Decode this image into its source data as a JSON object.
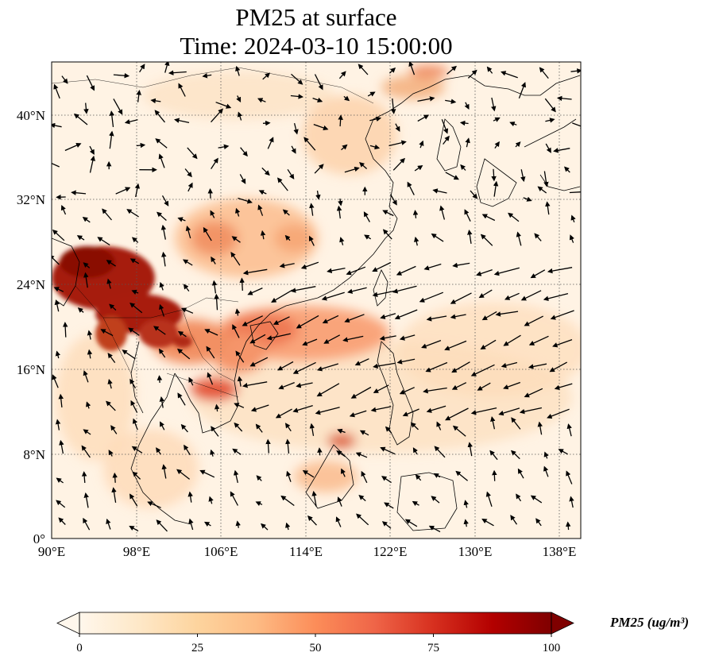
{
  "title": {
    "line1": "PM25 at surface",
    "line2": "Time: 2024-03-10 15:00:00"
  },
  "map": {
    "lon_ticks": [
      "90°E",
      "98°E",
      "106°E",
      "114°E",
      "122°E",
      "130°E",
      "138°E"
    ],
    "lat_ticks": [
      "0°",
      "8°N",
      "16°N",
      "24°N",
      "32°N",
      "40°N"
    ],
    "lon_range": [
      90,
      140
    ],
    "lat_range": [
      0,
      45
    ],
    "gridlines": true,
    "variable": "PM25",
    "wind_vectors": true
  },
  "colorbar": {
    "label": "PM25 (ug/m³)",
    "ticks": [
      "0",
      "25",
      "50",
      "75",
      "100"
    ],
    "range": [
      0,
      100
    ],
    "extend": "both",
    "colormap": "OrRd",
    "colors": [
      "#fff7ec",
      "#fee8c8",
      "#fdd49e",
      "#fdbb84",
      "#fc8d59",
      "#ef6548",
      "#d7301f",
      "#b30000",
      "#7f0000"
    ]
  }
}
